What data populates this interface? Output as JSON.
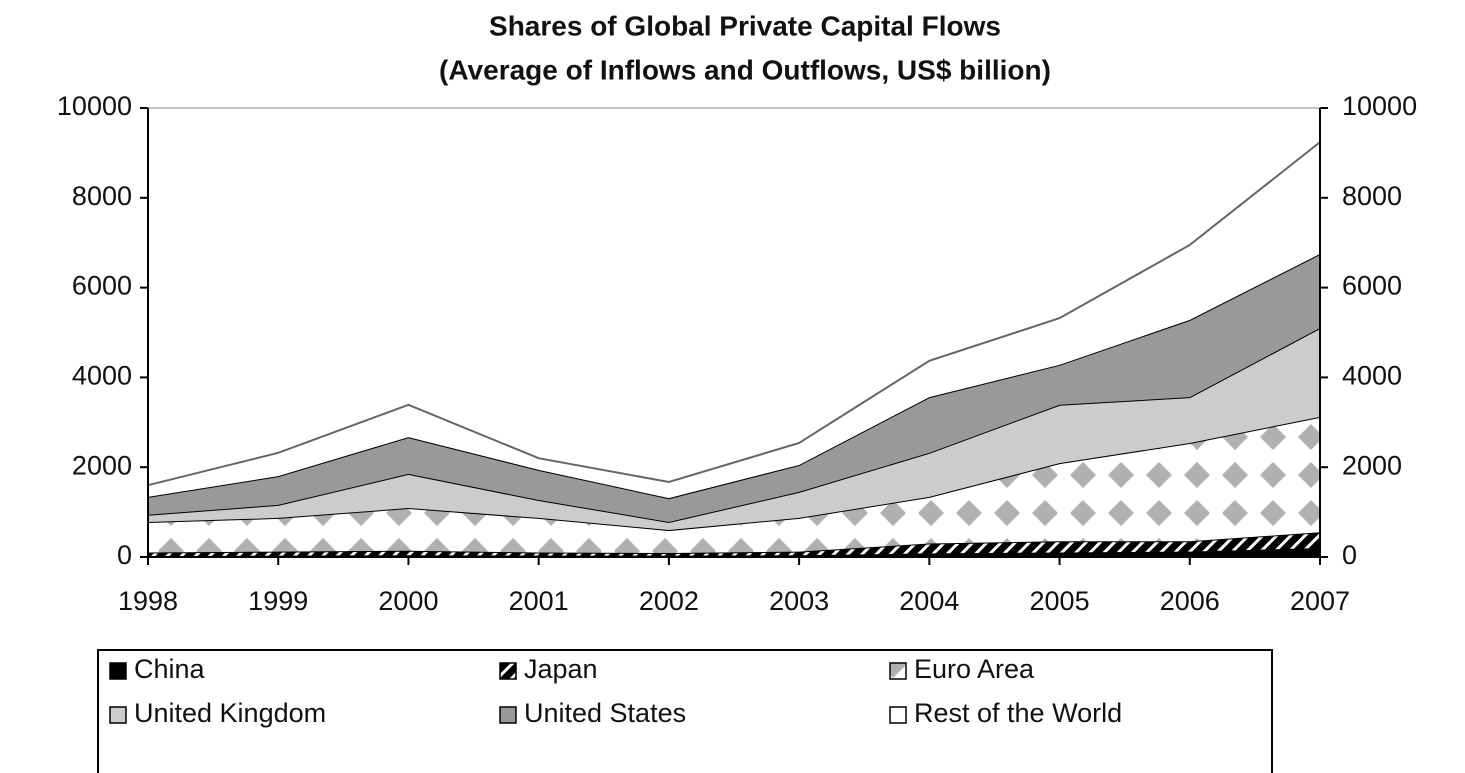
{
  "chart_data": {
    "type": "stacked_area",
    "title": "Shares of Global Private Capital Flows",
    "subtitle": "(Average of Inflows and Outflows, US$ billion)",
    "x": [
      1998,
      1999,
      2000,
      2001,
      2002,
      2003,
      2004,
      2005,
      2006,
      2007
    ],
    "xlim": [
      1998,
      2007
    ],
    "xticks": [
      1998,
      1999,
      2000,
      2001,
      2002,
      2003,
      2004,
      2005,
      2006,
      2007
    ],
    "ylim": [
      0,
      10000
    ],
    "yticks": [
      0,
      2000,
      4000,
      6000,
      8000,
      10000
    ],
    "y2lim": [
      0,
      10000
    ],
    "y2ticks": [
      0,
      2000,
      4000,
      6000,
      8000,
      10000
    ],
    "series": [
      {
        "name": "China",
        "color": "#000000",
        "values": [
          20,
          30,
          40,
          30,
          30,
          40,
          80,
          100,
          120,
          200
        ]
      },
      {
        "name": "Japan",
        "color": "#000000",
        "pattern": "diagonal",
        "values": [
          80,
          90,
          100,
          70,
          60,
          80,
          220,
          250,
          230,
          350
        ]
      },
      {
        "name": "Euro Area",
        "color": "#b0b0b0",
        "pattern": "diamond",
        "values": [
          680,
          750,
          950,
          770,
          510,
          750,
          1040,
          1740,
          2190,
          2570
        ]
      },
      {
        "name": "United Kingdom",
        "color": "#cccccc",
        "values": [
          160,
          290,
          760,
          400,
          180,
          580,
          980,
          1300,
          1020,
          1980
        ]
      },
      {
        "name": "United States",
        "color": "#999999",
        "values": [
          400,
          640,
          820,
          670,
          530,
          600,
          1240,
          890,
          1720,
          1650
        ]
      },
      {
        "name": "Rest of the World",
        "color": "#ffffff",
        "values": [
          260,
          520,
          720,
          260,
          360,
          490,
          810,
          1040,
          1670,
          2490
        ]
      }
    ]
  }
}
